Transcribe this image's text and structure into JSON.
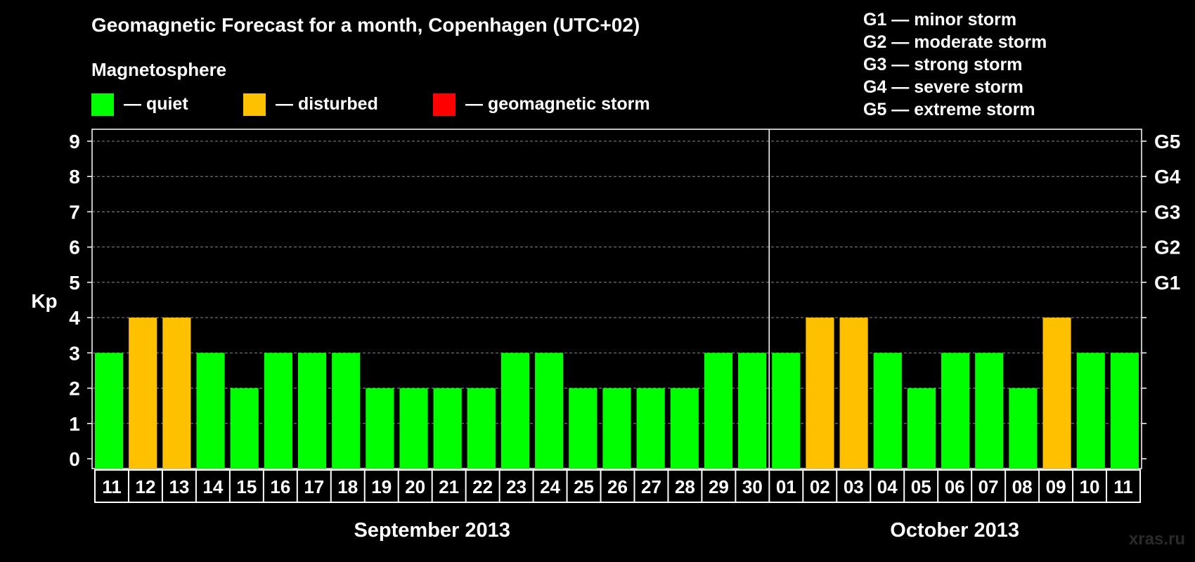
{
  "chart_data": {
    "type": "bar",
    "title": "Geomagnetic Forecast for a month, Copenhagen (UTC+02)",
    "ylabel": "Kp",
    "ylim": [
      0,
      9
    ],
    "yticks": [
      "0",
      "1",
      "2",
      "3",
      "4",
      "5",
      "6",
      "7",
      "8",
      "9"
    ],
    "storm_levels": [
      {
        "level": 5,
        "label": "G1"
      },
      {
        "level": 6,
        "label": "G2"
      },
      {
        "level": 7,
        "label": "G3"
      },
      {
        "level": 8,
        "label": "G4"
      },
      {
        "level": 9,
        "label": "G5"
      }
    ],
    "legend_title": "Magnetosphere",
    "legend": [
      {
        "label": "— quiet",
        "color": "#00ff00"
      },
      {
        "label": "— disturbed",
        "color": "#ffc000"
      },
      {
        "label": "— geomagnetic storm",
        "color": "#ff0000"
      }
    ],
    "storm_scale": [
      "G1 — minor storm",
      "G2 — moderate storm",
      "G3 — strong storm",
      "G4 — severe storm",
      "G5 — extreme storm"
    ],
    "categories": [
      "11",
      "12",
      "13",
      "14",
      "15",
      "16",
      "17",
      "18",
      "19",
      "20",
      "21",
      "22",
      "23",
      "24",
      "25",
      "26",
      "27",
      "28",
      "29",
      "30",
      "01",
      "02",
      "03",
      "04",
      "05",
      "06",
      "07",
      "08",
      "09",
      "10",
      "11"
    ],
    "values": [
      3,
      4,
      4,
      3,
      2,
      3,
      3,
      3,
      2,
      2,
      2,
      2,
      3,
      3,
      2,
      2,
      2,
      2,
      3,
      3,
      3,
      4,
      4,
      3,
      2,
      3,
      3,
      2,
      4,
      3,
      3
    ],
    "months": [
      {
        "label": "September 2013",
        "first_index": 0,
        "last_index": 19
      },
      {
        "label": "October 2013",
        "first_index": 20,
        "last_index": 30
      }
    ],
    "grid": true
  },
  "watermark": "xras.ru"
}
